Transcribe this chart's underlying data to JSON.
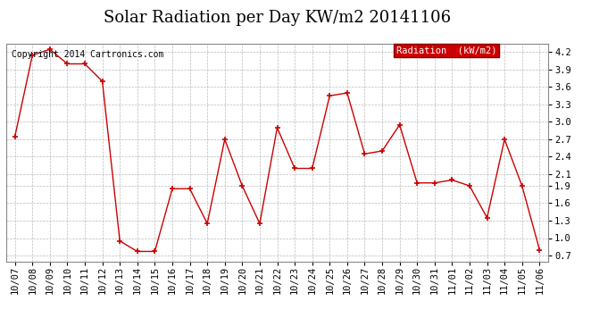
{
  "title": "Solar Radiation per Day KW/m2 20141106",
  "copyright_text": "Copyright 2014 Cartronics.com",
  "legend_label": "Radiation  (kW/m2)",
  "x_labels": [
    "10/07",
    "10/08",
    "10/09",
    "10/10",
    "10/11",
    "10/12",
    "10/13",
    "10/14",
    "10/15",
    "10/16",
    "10/17",
    "10/18",
    "10/19",
    "10/20",
    "10/21",
    "10/22",
    "10/23",
    "10/24",
    "10/25",
    "10/26",
    "10/27",
    "10/28",
    "10/29",
    "10/30",
    "10/31",
    "11/01",
    "11/02",
    "11/03",
    "11/04",
    "11/05",
    "11/06"
  ],
  "y_values": [
    2.75,
    4.15,
    4.25,
    4.0,
    4.0,
    3.7,
    0.95,
    0.77,
    0.77,
    1.85,
    1.85,
    1.25,
    2.7,
    1.9,
    1.25,
    2.9,
    2.2,
    2.2,
    3.45,
    3.5,
    2.45,
    2.5,
    2.95,
    1.95,
    1.95,
    2.0,
    1.9,
    1.35,
    2.7,
    1.9,
    0.8
  ],
  "line_color": "#cc0000",
  "marker_color": "#cc0000",
  "bg_color": "#ffffff",
  "plot_bg_color": "#ffffff",
  "grid_color": "#aaaaaa",
  "legend_bg": "#cc0000",
  "legend_text_color": "#ffffff",
  "ylim": [
    0.6,
    4.35
  ],
  "yticks": [
    0.7,
    1.0,
    1.3,
    1.6,
    1.9,
    2.1,
    2.4,
    2.7,
    3.0,
    3.3,
    3.6,
    3.9,
    4.2
  ],
  "title_fontsize": 13,
  "tick_fontsize": 7.5,
  "copyright_fontsize": 7
}
